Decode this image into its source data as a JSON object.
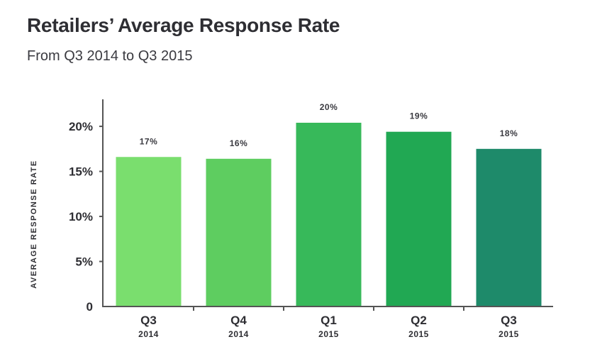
{
  "chart_data": {
    "type": "bar",
    "title": "Retailers’ Average Response Rate",
    "subtitle": "From Q3 2014 to Q3 2015",
    "ylabel": "AVERAGE RESPONSE RATE",
    "xlabel": "",
    "ylim": [
      0,
      23
    ],
    "yticks": [
      0,
      5,
      10,
      15,
      20
    ],
    "ytick_labels": [
      "0",
      "5%",
      "10%",
      "15%",
      "20%"
    ],
    "grid": false,
    "categories": [
      {
        "quarter": "Q3",
        "year": "2014"
      },
      {
        "quarter": "Q4",
        "year": "2014"
      },
      {
        "quarter": "Q1",
        "year": "2015"
      },
      {
        "quarter": "Q2",
        "year": "2015"
      },
      {
        "quarter": "Q3",
        "year": "2015"
      }
    ],
    "values": [
      16.6,
      16.4,
      20.4,
      19.4,
      17.5
    ],
    "data_labels": [
      "17%",
      "16%",
      "20%",
      "19%",
      "18%"
    ],
    "colors": [
      "#7ade6e",
      "#5ecd60",
      "#37b95a",
      "#21a853",
      "#1e8a6a"
    ],
    "axis_color": "#555555"
  }
}
